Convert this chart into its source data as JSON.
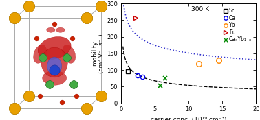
{
  "title": "300 K",
  "xlabel": "carrier conc. (10¹⁹ cm⁻³)",
  "ylabel": "mobility\n(cm² V⁻¹ s⁻¹)",
  "xlim": [
    0,
    20
  ],
  "ylim": [
    0,
    300
  ],
  "yticks": [
    0,
    50,
    100,
    150,
    200,
    250,
    300
  ],
  "xticks": [
    0,
    5,
    10,
    15,
    20
  ],
  "series_Sr": {
    "x": [
      1.0
    ],
    "y": [
      97
    ],
    "color": "#000000",
    "marker": "s",
    "ms": 4.5
  },
  "series_Ca": {
    "x": [
      2.5,
      3.2
    ],
    "y": [
      83,
      80
    ],
    "color": "#0000ee",
    "marker": "o",
    "ms": 4.5
  },
  "series_Yb": {
    "x": [
      11.5,
      14.5
    ],
    "y": [
      118,
      130
    ],
    "color": "#ff8800",
    "marker": "o",
    "ms": 5.5
  },
  "series_Eu": {
    "x": [
      2.2
    ],
    "y": [
      257
    ],
    "color": "#cc0000",
    "marker": ">",
    "ms": 5.0
  },
  "series_CaYb": {
    "x": [
      5.8,
      6.5
    ],
    "y": [
      52,
      75
    ],
    "color": "#008800",
    "marker": "x",
    "ms": 5.0
  },
  "dashed_a": 115,
  "dashed_b": 0.33,
  "dotted_a": 245,
  "dotted_b": 0.21,
  "legend_labels": [
    "Sr",
    "Ca",
    "Yb",
    "Eu",
    "CaₓYb₁₋ₓ"
  ],
  "legend_colors": [
    "#000000",
    "#0000ee",
    "#ff8800",
    "#cc0000",
    "#008800"
  ],
  "legend_markers": [
    "s",
    "o",
    "o",
    ">",
    "x"
  ],
  "crystal": {
    "bg": "#ffffff",
    "cage_color": "#aaaaaa",
    "sr_color": "#e8a000",
    "sb_color": "#cc2200",
    "zn_color": "#44aa44",
    "center_color": "#2244cc",
    "isosurface_color": "#cc2222"
  }
}
